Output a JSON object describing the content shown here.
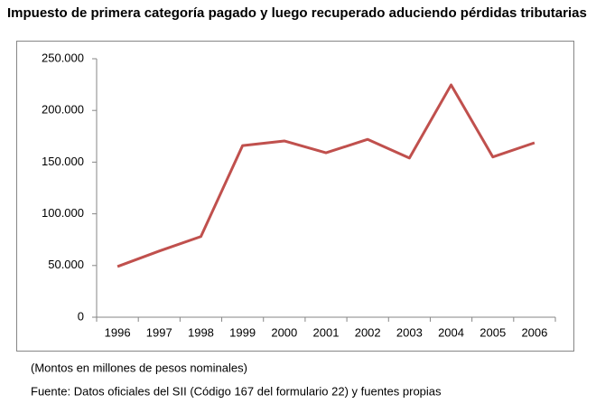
{
  "chart_data": {
    "type": "line",
    "title": "Impuesto de primera categoría pagado y luego recuperado aduciendo pérdidas tributarias",
    "categories": [
      "1996",
      "1997",
      "1998",
      "1999",
      "2000",
      "2001",
      "2002",
      "2003",
      "2004",
      "2005",
      "2006"
    ],
    "series": [
      {
        "name": "Impuesto",
        "color": "#c0504d",
        "values": [
          49000,
          64000,
          78000,
          166000,
          170500,
          159000,
          172000,
          154000,
          224700,
          155000,
          168700
        ]
      }
    ],
    "ylim": [
      0,
      250000
    ],
    "yticks": [
      0,
      {
        "value": 50000,
        "label": "50.000"
      },
      {
        "value": 100000,
        "label": "100.000"
      },
      {
        "value": 150000,
        "label": "150.000"
      },
      {
        "value": 200000,
        "label": "200.000"
      },
      {
        "value": 250000,
        "label": "250.000"
      }
    ],
    "grid": false,
    "notes": [
      "(Montos en millones de pesos nominales)",
      "Fuente: Datos oficiales del SII (Código 167 del formulario 22) y fuentes propias"
    ]
  }
}
